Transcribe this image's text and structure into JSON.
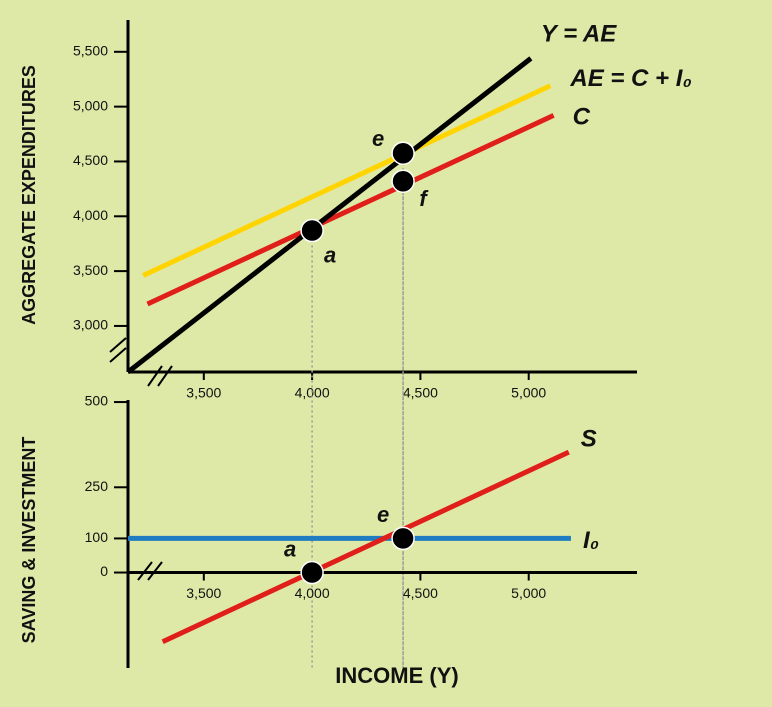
{
  "chart_data": [
    {
      "type": "line",
      "ylabel": "AGGREGATE EXPENDITURES",
      "xlim": [
        3150,
        5500
      ],
      "ylim": [
        2580,
        5790
      ],
      "xticks": [
        {
          "value": 3500,
          "label": "3,500"
        },
        {
          "value": 4000,
          "label": "4,000"
        },
        {
          "value": 4500,
          "label": "4,500"
        },
        {
          "value": 5000,
          "label": "5,000"
        }
      ],
      "yticks": [
        {
          "value": 3000,
          "label": "3,000"
        },
        {
          "value": 3500,
          "label": "3,500"
        },
        {
          "value": 4000,
          "label": "4,000"
        },
        {
          "value": 4500,
          "label": "4,500"
        },
        {
          "value": 5000,
          "label": "5,000"
        },
        {
          "value": 5500,
          "label": "5,500"
        }
      ],
      "series": [
        {
          "name": "AE = C + I₀",
          "color": "#ffd400",
          "x": [
            3220,
            5100
          ],
          "values": [
            3460,
            5190
          ]
        },
        {
          "name": "C",
          "color": "#e01e1a",
          "x": [
            3240,
            5115
          ],
          "values": [
            3200,
            4920
          ]
        },
        {
          "name": "Y = AE",
          "color": "#000000",
          "x": [
            3150,
            5010
          ],
          "values": [
            2580,
            5440
          ]
        }
      ],
      "points": [
        {
          "label": "a",
          "x": 4000,
          "y": 3870
        },
        {
          "label": "e",
          "x": 4420,
          "y": 4575
        },
        {
          "label": "f",
          "x": 4420,
          "y": 4320
        }
      ]
    },
    {
      "type": "line",
      "ylabel": "SAVING & INVESTMENT",
      "xlabel": "INCOME (Y)",
      "xlim": [
        3150,
        5500
      ],
      "ylim": [
        -280,
        506
      ],
      "xticks": [
        {
          "value": 3500,
          "label": "3,500"
        },
        {
          "value": 4000,
          "label": "4,000"
        },
        {
          "value": 4500,
          "label": "4,500"
        },
        {
          "value": 5000,
          "label": "5,000"
        }
      ],
      "yticks": [
        0,
        100,
        250,
        500
      ],
      "series": [
        {
          "name": "I₀",
          "color": "#1f7cc0",
          "x": [
            3150,
            5195
          ],
          "values": [
            100,
            100
          ]
        },
        {
          "name": "S",
          "color": "#e01e1a",
          "x": [
            3310,
            5185
          ],
          "values": [
            -203,
            353
          ]
        }
      ],
      "points": [
        {
          "label": "a",
          "x": 4000,
          "y": 0
        },
        {
          "label": "e",
          "x": 4420,
          "y": 100
        }
      ]
    }
  ]
}
